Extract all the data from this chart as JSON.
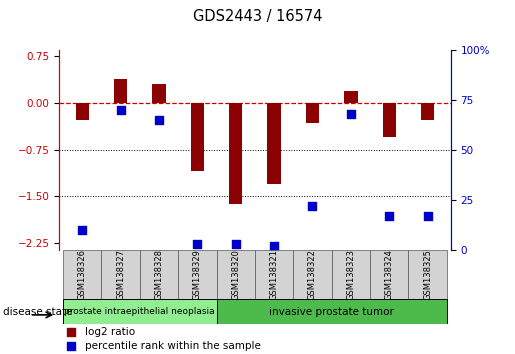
{
  "title": "GDS2443 / 16574",
  "samples": [
    "GSM138326",
    "GSM138327",
    "GSM138328",
    "GSM138329",
    "GSM138320",
    "GSM138321",
    "GSM138322",
    "GSM138323",
    "GSM138324",
    "GSM138325"
  ],
  "log2_ratio": [
    -0.28,
    0.38,
    0.3,
    -1.1,
    -1.62,
    -1.3,
    -0.32,
    0.18,
    -0.55,
    -0.27
  ],
  "percentile_rank": [
    10,
    70,
    65,
    3,
    3,
    2,
    22,
    68,
    17,
    17
  ],
  "groups": [
    {
      "label": "prostate intraepithelial neoplasia",
      "n": 4,
      "color": "#90ee90"
    },
    {
      "label": "invasive prostate tumor",
      "n": 6,
      "color": "#4cbb4c"
    }
  ],
  "bar_color": "#8B0000",
  "dot_color": "#0000cc",
  "ylim_left": [
    -2.35,
    0.85
  ],
  "ylim_right": [
    0,
    100
  ],
  "yticks_left": [
    0.75,
    0,
    -0.75,
    -1.5,
    -2.25
  ],
  "yticks_right": [
    100,
    75,
    50,
    25,
    0
  ],
  "hline_y": 0,
  "dotted_lines": [
    -0.75,
    -1.5
  ],
  "background_color": "#ffffff",
  "bar_width": 0.35,
  "dot_size": 28,
  "sample_box_color": "#d3d3d3",
  "legend_items": [
    "log2 ratio",
    "percentile rank within the sample"
  ]
}
